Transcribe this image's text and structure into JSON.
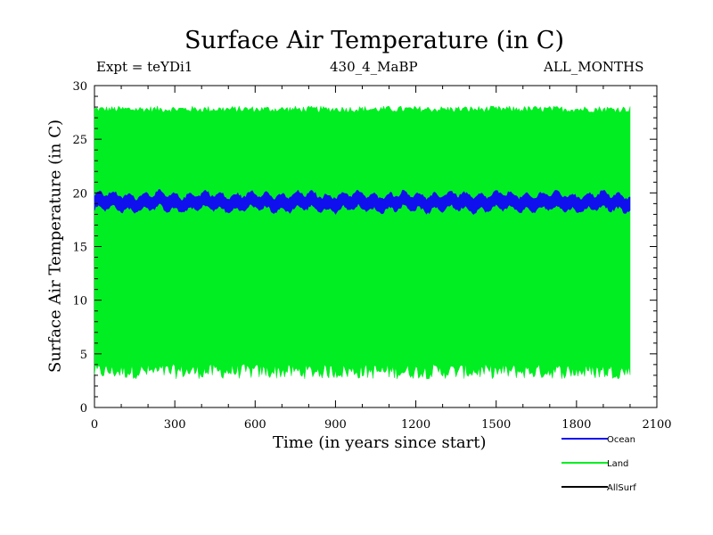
{
  "chart_data": {
    "type": "line",
    "title": "Surface Air Temperature (in C)",
    "experiment": "Expt = teYDi1",
    "period": "430_4_MaBP",
    "months": "ALL_MONTHS",
    "xlabel": "Time (in years since start)",
    "ylabel": "Surface Air Temperature (in C)",
    "xlim": [
      0,
      2100
    ],
    "ylim": [
      0,
      30
    ],
    "xticks": [
      0,
      300,
      600,
      900,
      1200,
      1500,
      1800,
      2100
    ],
    "yticks": [
      0,
      5,
      10,
      15,
      20,
      25,
      30
    ],
    "x_range": [
      0,
      2000
    ],
    "series": [
      {
        "name": "Land",
        "color": "#00ee22",
        "style": "band",
        "mean": 15.2,
        "low_approx": 3.5,
        "high_approx": 27.8
      },
      {
        "name": "Ocean",
        "color": "#1010ee",
        "style": "band",
        "mean": 19.2,
        "low_approx": 18.5,
        "high_approx": 19.8
      },
      {
        "name": "AllSurf",
        "color": "#000000",
        "style": "line",
        "values_shown": false
      }
    ],
    "legend": [
      "Ocean",
      "Land",
      "AllSurf"
    ],
    "legend_position": "bottom-right"
  }
}
